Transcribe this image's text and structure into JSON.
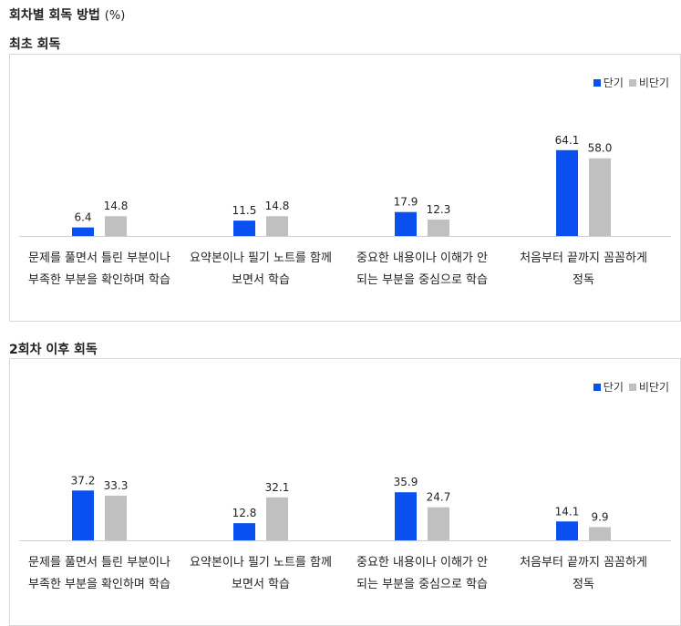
{
  "page": {
    "title": "회차별 회독 방법",
    "unit": "(%)"
  },
  "legend": {
    "short_label": "단기",
    "nonshort_label": "비단기"
  },
  "colors": {
    "short": "#0a50f0",
    "nonshort": "#c0c0c0"
  },
  "chart_data": [
    {
      "type": "bar",
      "title": "최초 회독",
      "categories": [
        "문제를 풀면서 틀린 부분이나\n부족한 부분을 확인하며 학습",
        "요약본이나 필기 노트를 함께\n보면서 학습",
        "중요한 내용이나 이해가 안\n되는 부분을 중심으로 학습",
        "처음부터 끝까지 꼼꼼하게\n정독"
      ],
      "series": [
        {
          "name": "단기",
          "values": [
            6.4,
            11.5,
            17.9,
            64.1
          ]
        },
        {
          "name": "비단기",
          "values": [
            14.8,
            14.8,
            12.3,
            58.0
          ]
        }
      ],
      "value_labels": [
        [
          "6.4",
          "11.5",
          "17.9",
          "64.1"
        ],
        [
          "14.8",
          "14.8",
          "12.3",
          "58.0"
        ]
      ],
      "legend_position": "top-right",
      "grid": false
    },
    {
      "type": "bar",
      "title": "2회차 이후  회독",
      "categories": [
        "문제를 풀면서 틀린 부분이나\n부족한 부분을 확인하며 학습",
        "요약본이나 필기 노트를 함께\n보면서 학습",
        "중요한 내용이나 이해가 안\n되는 부분을 중심으로 학습",
        "처음부터 끝까지 꼼꼼하게\n정독"
      ],
      "series": [
        {
          "name": "단기",
          "values": [
            37.2,
            12.8,
            35.9,
            14.1
          ]
        },
        {
          "name": "비단기",
          "values": [
            33.3,
            32.1,
            24.7,
            9.9
          ]
        }
      ],
      "value_labels": [
        [
          "37.2",
          "12.8",
          "35.9",
          "14.1"
        ],
        [
          "33.3",
          "32.1",
          "24.7",
          "9.9"
        ]
      ],
      "legend_position": "top-right",
      "grid": false
    }
  ]
}
